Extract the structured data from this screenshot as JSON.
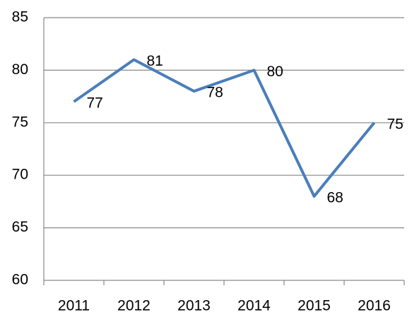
{
  "chart_data": {
    "type": "line",
    "categories": [
      "2011",
      "2012",
      "2013",
      "2014",
      "2015",
      "2016"
    ],
    "values": [
      77,
      81,
      78,
      80,
      68,
      75
    ],
    "color": "#4a7ebb",
    "ylim": [
      60,
      85
    ],
    "yticks": [
      60,
      65,
      70,
      75,
      80,
      85
    ],
    "grid": true
  }
}
